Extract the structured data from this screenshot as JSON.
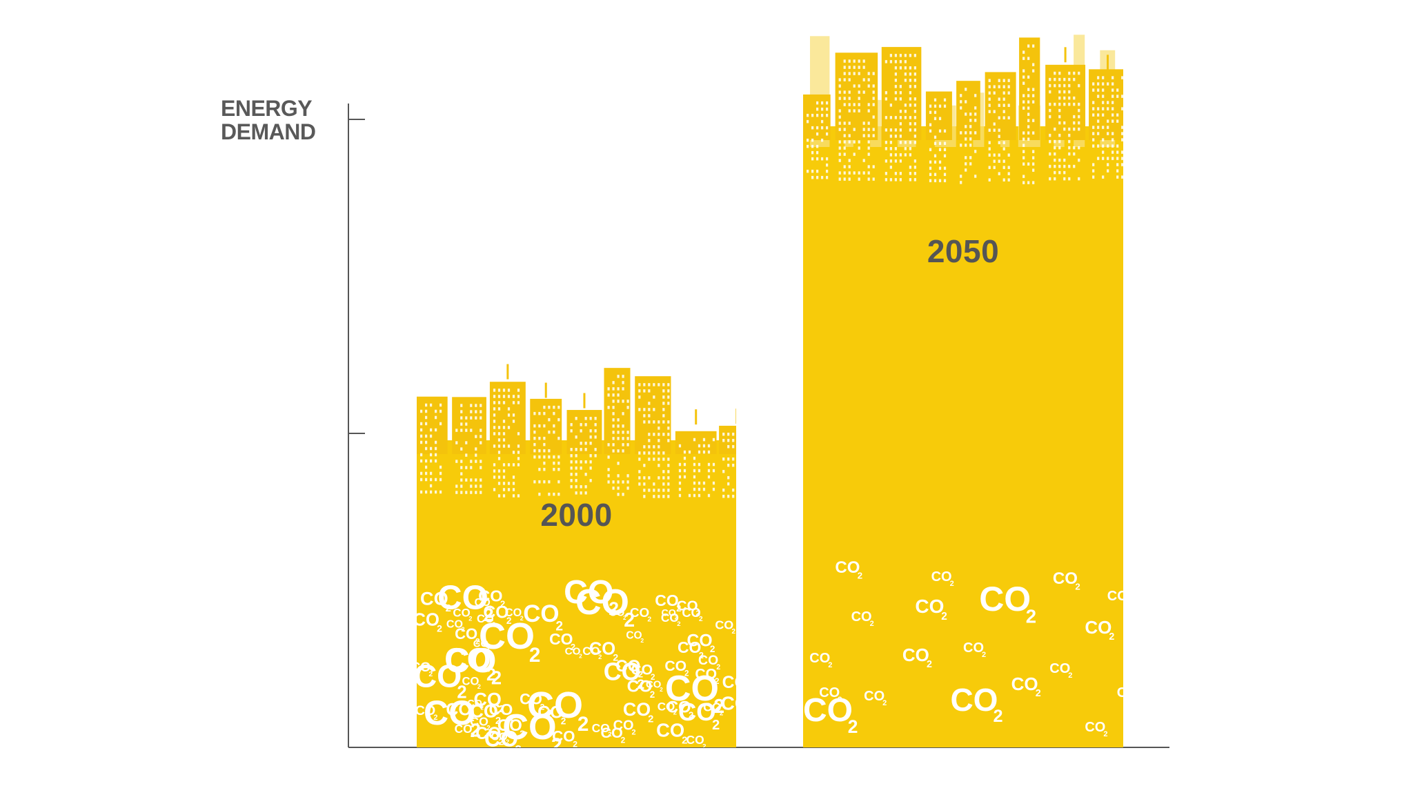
{
  "chart_data": {
    "type": "bar",
    "title": "",
    "ylabel_lines": [
      "ENERGY",
      "DEMAND"
    ],
    "xlabel": "",
    "categories": [
      "2000",
      "2050"
    ],
    "values": [
      1,
      2
    ],
    "ylim": [
      0,
      2
    ],
    "yticks": [
      1,
      2
    ],
    "grid": false,
    "bar_labels": [
      "2000",
      "2050"
    ],
    "annotations": [
      "CO",
      "2"
    ],
    "colors": {
      "bar": "#F7CB0A",
      "skyline": "#F4C30C",
      "skyline_faded": "#F8E07A",
      "axis": "#555555",
      "text": "#555555"
    }
  }
}
